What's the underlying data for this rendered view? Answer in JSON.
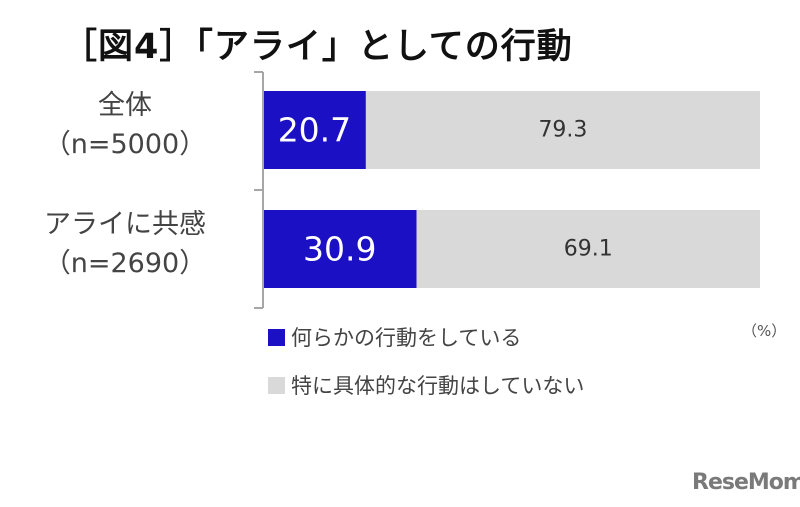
{
  "title": "［図4］「アライ」としての行動",
  "unit_label": "（%）",
  "logo_text": "ReseMom",
  "colors": {
    "series1": "#1c10c4",
    "series2": "#d9d9d9",
    "axis": "#a6a6a6"
  },
  "legend": [
    {
      "label": "何らかの行動をしている",
      "color": "#1c10c4"
    },
    {
      "label": "特に具体的な行動はしていない",
      "color": "#d9d9d9"
    }
  ],
  "categories": [
    {
      "line1": "全体",
      "line2": "（n=5000）"
    },
    {
      "line1": "アライに共感",
      "line2": "（n=2690）"
    }
  ],
  "chart_data": {
    "type": "bar",
    "orientation": "horizontal",
    "stacked": true,
    "title": "［図4］「アライ」としての行動",
    "categories": [
      "全体（n=5000）",
      "アライに共感（n=2690）"
    ],
    "series": [
      {
        "name": "何らかの行動をしている",
        "values": [
          20.7,
          30.9
        ]
      },
      {
        "name": "特に具体的な行動はしていない",
        "values": [
          79.3,
          69.1
        ]
      }
    ],
    "xlim": [
      0,
      100
    ],
    "unit": "%",
    "grid": false,
    "legend_position": "bottom-left"
  }
}
